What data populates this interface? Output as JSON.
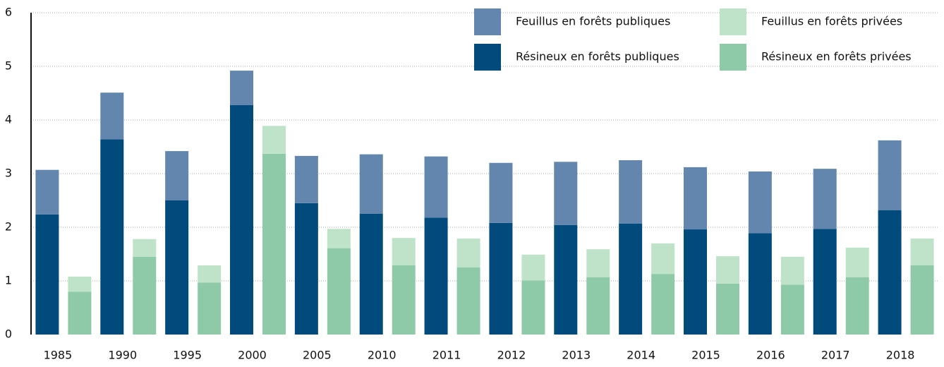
{
  "chart_data": {
    "type": "stacked-grouped-bar",
    "categories": [
      "1985",
      "1990",
      "1995",
      "2000",
      "2005",
      "2010",
      "2011",
      "2012",
      "2013",
      "2014",
      "2015",
      "2016",
      "2017",
      "2018"
    ],
    "series": [
      {
        "name": "Résineux en forêts publiques",
        "stack": "public",
        "color": "#004a7c",
        "values": [
          2.24,
          3.64,
          2.5,
          4.28,
          2.45,
          2.25,
          2.18,
          2.08,
          2.04,
          2.07,
          1.96,
          1.89,
          1.97,
          2.32
        ]
      },
      {
        "name": "Feuillus en forêts publiques",
        "stack": "public",
        "color": "#6286ad",
        "values": [
          0.83,
          0.87,
          0.92,
          0.64,
          0.88,
          1.11,
          1.14,
          1.12,
          1.18,
          1.18,
          1.16,
          1.15,
          1.12,
          1.3
        ]
      },
      {
        "name": "Résineux en forêts privées",
        "stack": "private",
        "color": "#8fcaa8",
        "values": [
          0.8,
          1.45,
          0.97,
          3.37,
          1.61,
          1.29,
          1.25,
          1.01,
          1.07,
          1.13,
          0.95,
          0.93,
          1.07,
          1.29
        ]
      },
      {
        "name": "Feuillus en forêts privées",
        "stack": "private",
        "color": "#bfe3c9",
        "values": [
          0.28,
          0.33,
          0.32,
          0.52,
          0.36,
          0.51,
          0.54,
          0.48,
          0.52,
          0.57,
          0.51,
          0.52,
          0.55,
          0.5
        ]
      }
    ],
    "ylim": [
      0,
      6
    ],
    "yticks": [
      0,
      1,
      2,
      3,
      4,
      5,
      6
    ],
    "grid": true,
    "legend": "top-right"
  }
}
